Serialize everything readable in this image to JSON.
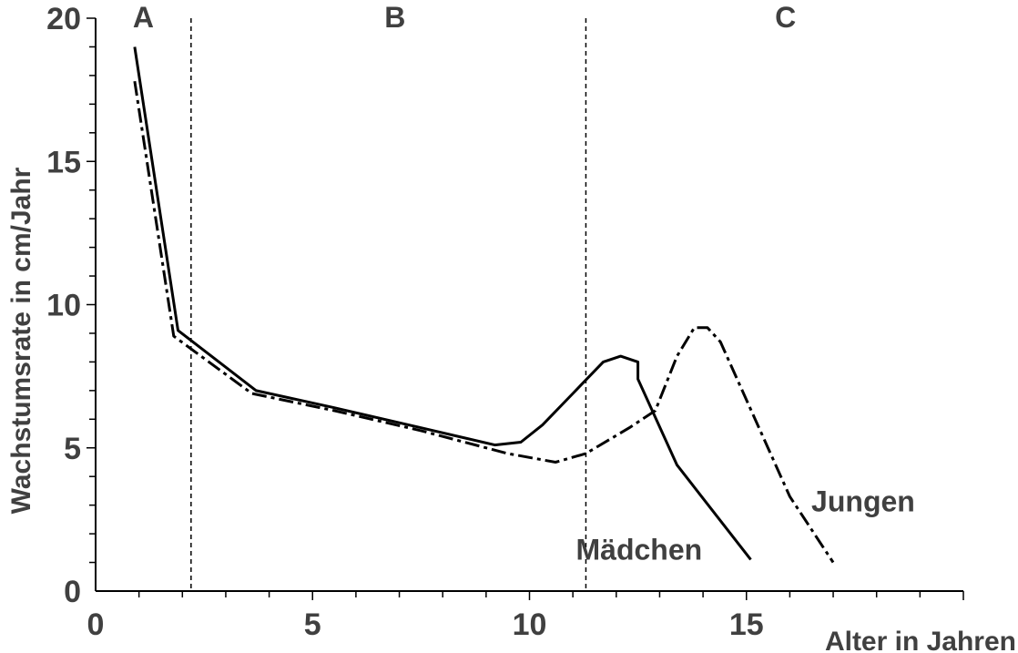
{
  "chart_data": {
    "type": "line",
    "xlabel": "Alter in Jahren",
    "ylabel": "Wachstumsrate in cm/Jahr",
    "xlim": [
      0,
      20
    ],
    "ylim": [
      0,
      20
    ],
    "xticks": [
      0,
      5,
      10,
      15
    ],
    "yticks": [
      0,
      5,
      10,
      15,
      20
    ],
    "grid": false,
    "region_boundaries": [
      2.2,
      11.3
    ],
    "regions": [
      {
        "label": "A",
        "x": 1.1
      },
      {
        "label": "B",
        "x": 6.9
      },
      {
        "label": "C",
        "x": 15.9
      }
    ],
    "series": [
      {
        "name": "Mädchen",
        "style": "solid",
        "points": [
          [
            0.9,
            19.0
          ],
          [
            1.9,
            9.1
          ],
          [
            3.7,
            7.0
          ],
          [
            5.5,
            6.4
          ],
          [
            7.5,
            5.7
          ],
          [
            9.2,
            5.1
          ],
          [
            9.8,
            5.2
          ],
          [
            10.3,
            5.8
          ],
          [
            11.0,
            6.9
          ],
          [
            11.7,
            8.0
          ],
          [
            12.1,
            8.2
          ],
          [
            12.5,
            8.0
          ],
          [
            12.5,
            7.4
          ],
          [
            13.4,
            4.4
          ],
          [
            15.1,
            1.1
          ]
        ]
      },
      {
        "name": "Jungen",
        "style": "dashdot",
        "points": [
          [
            0.9,
            17.8
          ],
          [
            1.8,
            8.9
          ],
          [
            3.6,
            6.9
          ],
          [
            5.5,
            6.3
          ],
          [
            7.5,
            5.6
          ],
          [
            9.5,
            4.8
          ],
          [
            10.6,
            4.5
          ],
          [
            11.3,
            4.8
          ],
          [
            12.3,
            5.7
          ],
          [
            12.9,
            6.3
          ],
          [
            13.4,
            8.2
          ],
          [
            13.8,
            9.2
          ],
          [
            14.1,
            9.2
          ],
          [
            14.4,
            8.7
          ],
          [
            16.0,
            3.3
          ],
          [
            17.0,
            1.0
          ]
        ]
      }
    ]
  }
}
